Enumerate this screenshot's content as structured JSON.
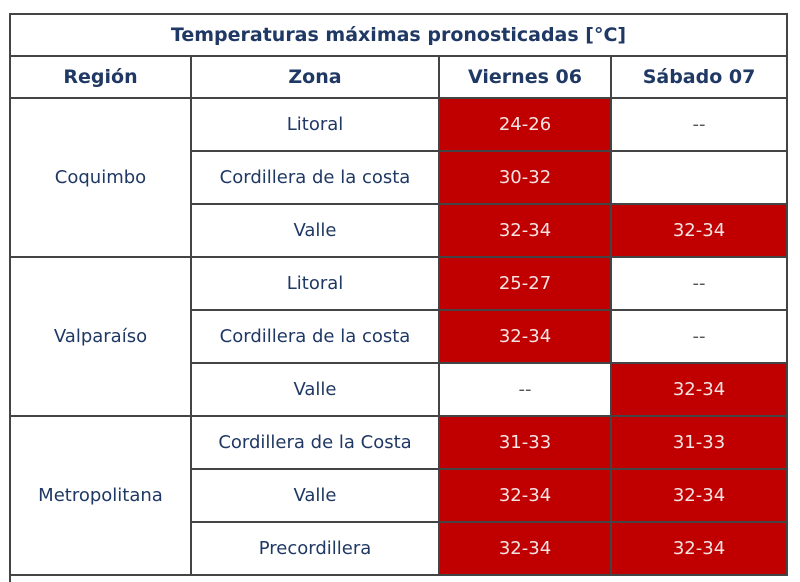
{
  "title": "Temperaturas máximas pronosticadas [°C]",
  "headers": [
    "Región",
    "Zona",
    "Viernes 06",
    "Sábado 07"
  ],
  "colors": {
    "hot": "#c00000",
    "text": "#1f3864"
  },
  "regions": [
    {
      "name": "Coquimbo",
      "rows": [
        {
          "zona": "Litoral",
          "viernes": "24-26",
          "viernes_hot": true,
          "sabado": "--",
          "sabado_hot": false
        },
        {
          "zona": "Cordillera de la costa",
          "viernes": "30-32",
          "viernes_hot": true,
          "sabado": "",
          "sabado_hot": false
        },
        {
          "zona": "Valle",
          "viernes": "32-34",
          "viernes_hot": true,
          "sabado": "32-34",
          "sabado_hot": true
        }
      ]
    },
    {
      "name": "Valparaíso",
      "rows": [
        {
          "zona": "Litoral",
          "viernes": "25-27",
          "viernes_hot": true,
          "sabado": "--",
          "sabado_hot": false
        },
        {
          "zona": "Cordillera de la costa",
          "viernes": "32-34",
          "viernes_hot": true,
          "sabado": "--",
          "sabado_hot": false
        },
        {
          "zona": "Valle",
          "viernes": "--",
          "viernes_hot": false,
          "sabado": "32-34",
          "sabado_hot": true
        }
      ]
    },
    {
      "name": "Metropolitana",
      "rows": [
        {
          "zona": "Cordillera de la Costa",
          "viernes": "31-33",
          "viernes_hot": true,
          "sabado": "31-33",
          "sabado_hot": true
        },
        {
          "zona": "Valle",
          "viernes": "32-34",
          "viernes_hot": true,
          "sabado": "32-34",
          "sabado_hot": true
        },
        {
          "zona": "Precordillera",
          "viernes": "32-34",
          "viernes_hot": true,
          "sabado": "32-34",
          "sabado_hot": true
        }
      ]
    }
  ]
}
